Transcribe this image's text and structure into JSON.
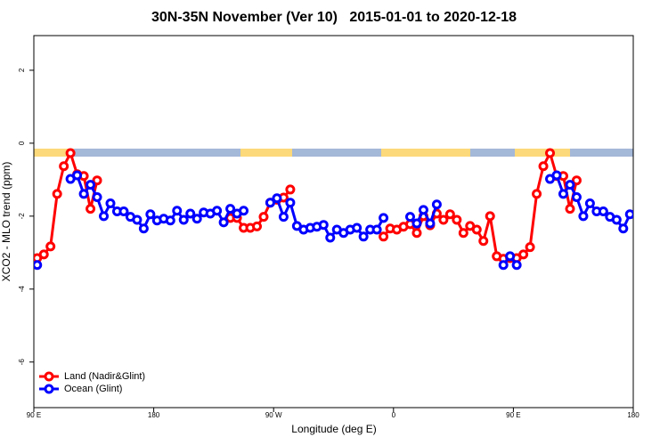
{
  "chart_data": {
    "type": "line",
    "title": "30N-35N November (Ver 10)   2015-01-01 to 2020-12-18",
    "x_label": "Longitude (deg E)",
    "y_label": "XCO2 - MLO trend (ppm)",
    "x": [
      92.5,
      97.5,
      102.5,
      107.5,
      112.5,
      117.5,
      122.5,
      127.5,
      132.5,
      137.5,
      142.5,
      147.5,
      152.5,
      157.5,
      162.5,
      167.5,
      172.5,
      177.5,
      182.5,
      187.5,
      192.5,
      197.5,
      202.5,
      207.5,
      212.5,
      217.5,
      222.5,
      227.5,
      232.5,
      237.5,
      242.5,
      247.5,
      252.5,
      257.5,
      262.5,
      267.5,
      272.5,
      277.5,
      282.5,
      287.5,
      292.5,
      297.5,
      302.5,
      307.5,
      312.5,
      317.5,
      322.5,
      327.5,
      332.5,
      337.5,
      342.5,
      347.5,
      352.5,
      357.5,
      362.5,
      367.5,
      372.5,
      377.5,
      382.5,
      387.5,
      392.5,
      397.5,
      402.5,
      407.5,
      412.5,
      417.5,
      422.5,
      427.5,
      432.5,
      437.5,
      442.5,
      447.5,
      452.5,
      457.5,
      462.5,
      467.5,
      472.5,
      477.5,
      482.5,
      487.5,
      492.5,
      497.5,
      502.5,
      507.5,
      512.5,
      517.5,
      522.5,
      527.5,
      532.5,
      537.5
    ],
    "series": [
      {
        "name": "Land (Nadir&Glint)",
        "color": "#ff0000",
        "values": [
          -3.15,
          -3.05,
          -2.83,
          -1.39,
          -0.63,
          -0.27,
          -0.85,
          -0.9,
          -1.8,
          -1.02,
          null,
          null,
          null,
          null,
          null,
          null,
          null,
          null,
          null,
          null,
          null,
          null,
          null,
          null,
          null,
          null,
          null,
          null,
          null,
          -2.05,
          -2.05,
          -2.32,
          -2.32,
          -2.28,
          -2.02,
          -1.63,
          -1.55,
          -1.49,
          -1.27,
          null,
          null,
          null,
          null,
          null,
          null,
          null,
          null,
          null,
          null,
          null,
          null,
          null,
          -2.56,
          -2.34,
          -2.37,
          -2.29,
          -2.22,
          -2.46,
          -2.0,
          -2.25,
          -1.93,
          -2.1,
          -1.95,
          -2.1,
          -2.46,
          -2.27,
          -2.37,
          -2.68,
          -2.0,
          -3.1,
          -3.17,
          -3.15,
          -3.15,
          -3.05,
          -2.85,
          -1.39,
          -0.63,
          -0.27,
          -0.9,
          -0.9,
          -1.8,
          -1.02,
          null,
          null,
          null,
          null,
          null,
          null,
          null,
          null
        ]
      },
      {
        "name": "Ocean (Glint)",
        "color": "#0000ff",
        "values": [
          -3.34,
          null,
          null,
          null,
          null,
          -0.98,
          -0.88,
          -1.39,
          -1.14,
          -1.48,
          -2.0,
          -1.65,
          -1.87,
          -1.87,
          -2.02,
          -2.1,
          -2.34,
          -1.95,
          -2.12,
          -2.07,
          -2.12,
          -1.85,
          -2.1,
          -1.93,
          -2.07,
          -1.9,
          -1.93,
          -1.85,
          -2.17,
          -1.8,
          -1.93,
          -1.85,
          null,
          null,
          null,
          -1.63,
          -1.51,
          -2.02,
          -1.63,
          -2.27,
          -2.37,
          -2.32,
          -2.29,
          -2.24,
          -2.59,
          -2.37,
          -2.46,
          -2.37,
          -2.32,
          -2.56,
          -2.37,
          -2.37,
          -2.05,
          null,
          null,
          null,
          -2.02,
          -2.2,
          -1.83,
          -2.2,
          -1.68,
          null,
          null,
          null,
          null,
          null,
          null,
          null,
          null,
          null,
          -3.34,
          -3.1,
          -3.34,
          null,
          null,
          null,
          null,
          -0.98,
          -0.88,
          -1.39,
          -1.14,
          -1.48,
          -2.0,
          -1.65,
          -1.87,
          -1.87,
          -2.02,
          -2.1,
          -2.34,
          -1.95
        ]
      }
    ],
    "xlim": [
      90,
      540
    ],
    "xticks": [
      {
        "value": 90,
        "label": "90 E"
      },
      180,
      {
        "value": 270,
        "label": "90 W"
      },
      {
        "value": 360,
        "label": "0"
      },
      {
        "value": 450,
        "label": "90 E"
      },
      {
        "value": 540,
        "label": "180"
      }
    ],
    "ylim": [
      -7.25,
      2.95
    ],
    "yticks": [
      2,
      0,
      -2,
      -4,
      -6
    ],
    "legend": "bottom-left"
  }
}
